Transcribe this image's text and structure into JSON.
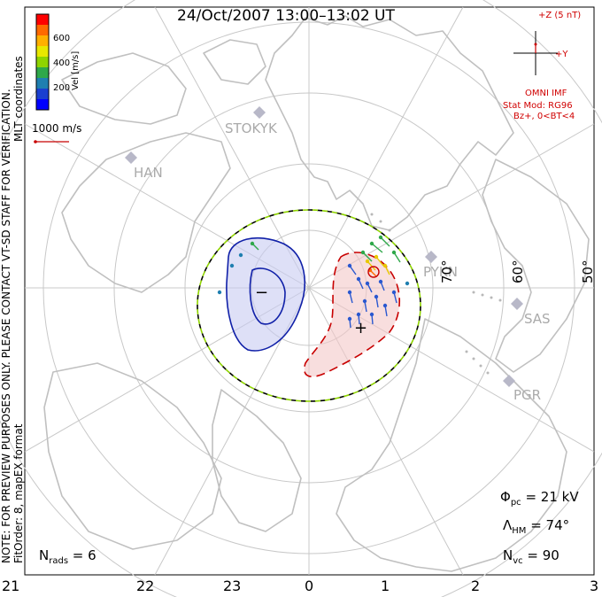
{
  "title": "24/Oct/2007 13:00–13:02 UT",
  "colorbar": {
    "label": "Vel [m/s]",
    "ticks": [
      "600",
      "400",
      "200"
    ],
    "colors": [
      "#ff0000",
      "#ff6a00",
      "#ffb000",
      "#e8e800",
      "#8fd400",
      "#2fa84a",
      "#1f7fb0",
      "#1a3fd0",
      "#0000ff"
    ]
  },
  "coord_label": "MLT coordinates",
  "vector_scale": "1000 m/s",
  "notice": "NOTE: FOR PREVIEW PURPOSES ONLY. PLEASE CONTACT VT-SD STAFF FOR VERIFICATION.",
  "fit_info": "FitOrder: 8, mapEX format",
  "imf": {
    "z_label": "+Z (5 nT)",
    "y_label": "+Y",
    "source": "OMNI IMF",
    "model": "Stat Mod: RG96",
    "condition": "Bz+, 0<BT<4"
  },
  "stations": [
    "STOKYK",
    "HAN",
    "PYKN",
    "SAS",
    "PGR"
  ],
  "latitudes": [
    "70°",
    "60°",
    "50°"
  ],
  "mlt_ticks": [
    "21",
    "22",
    "23",
    "0",
    "1",
    "2",
    "3"
  ],
  "metrics": {
    "phi_pc": "Φ",
    "phi_pc_sub": "pc",
    "phi_pc_val": " = 21 kV",
    "lambda_hm": "Λ",
    "lambda_hm_sub": "HM",
    "lambda_hm_val": " = 74°",
    "n_vc": "N",
    "n_vc_sub": "vc",
    "n_vc_val": " = 90",
    "n_rads": "N",
    "n_rads_sub": "rads",
    "n_rads_val": " = 6"
  },
  "cells": {
    "negative_symbol": "−",
    "positive_symbol": "+"
  }
}
